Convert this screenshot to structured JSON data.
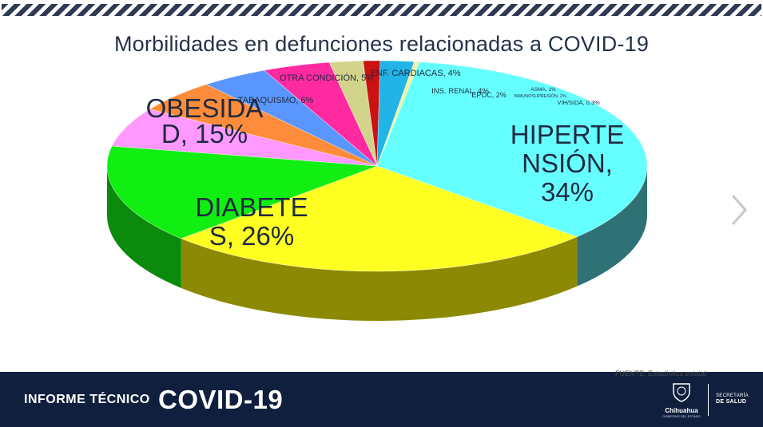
{
  "title": "Morbilidades  en defunciones  relacionadas  a COVID-19",
  "source": "FUENTE: Estadística estatal",
  "footer": {
    "label": "INFORME TÉCNICO",
    "covid": "COVID-19",
    "logo_name": "Chihuahua",
    "logo_sub": "GOBIERNO DEL ESTADO",
    "dept_line1": "SECRETARÍA",
    "dept_line2": "DE SALUD"
  },
  "chart_data": {
    "type": "pie",
    "title": "Morbilidades  en defunciones  relacionadas  a COVID-19",
    "style": "3d",
    "slices": [
      {
        "name": "HIPERTENSIÓN",
        "value": 34,
        "label": "HIPERTE|NSIÓN,|34%",
        "color": "#66ffff",
        "side_color": "#2e7276"
      },
      {
        "name": "DIABETES",
        "value": 26,
        "label": "DIABETE|S, 26%",
        "color": "#ffff22",
        "side_color": "#8c8a05"
      },
      {
        "name": "OBESIDAD",
        "value": 15,
        "label": "OBESIDA|D, 15%",
        "color": "#11ee11",
        "side_color": "#0b8a0b"
      },
      {
        "name": "TABAQUISMO",
        "value": 6,
        "label": "TABAQUISMO, 6%",
        "color": "#ff99ff",
        "side_color": "#8a558a"
      },
      {
        "name": "OTRA CONDICIÓN",
        "value": 5,
        "label": "OTRA CONDICIÓN, 5%",
        "color": "#ff8c3a",
        "side_color": "#8a4a1a"
      },
      {
        "name": "ENF. CARDIACAS",
        "value": 4,
        "label": "ENF. CARDIACAS, 4%",
        "color": "#5a96ff",
        "side_color": "#2e4f8a"
      },
      {
        "name": "INS. RENAL",
        "value": 4,
        "label": "INS. RENAL, 4%",
        "color": "#ff2aa0",
        "side_color": "#8a1557"
      },
      {
        "name": "EPOC",
        "value": 2,
        "label": "EPOC, 2%",
        "color": "#d2d48c",
        "side_color": "#77784e"
      },
      {
        "name": "ASMA",
        "value": 1,
        "label": "ASMA, 1%",
        "color": "#cc1111",
        "side_color": "#6e0909"
      },
      {
        "name": "INMUNOSUPRESIÓN",
        "value": 2,
        "label": "INMUNOSUPRESIÓN, 2%",
        "color": "#22b4e6",
        "side_color": "#12607c"
      },
      {
        "name": "VIH/SIDA",
        "value": 0.3,
        "label": "VIH/SIDA, 0.3%",
        "color": "#f2f2a0",
        "side_color": "#8a8a55"
      }
    ]
  }
}
